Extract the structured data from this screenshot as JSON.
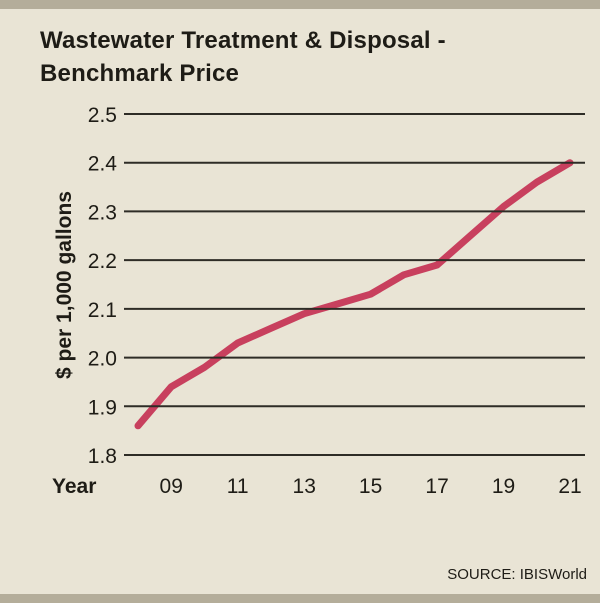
{
  "header": {
    "title_line1": "Wastewater Treatment & Disposal -",
    "title_line2": "Benchmark Price"
  },
  "footer": {
    "source": "SOURCE: IBISWorld"
  },
  "colors": {
    "background": "#e9e4d5",
    "band": "#b4ad9a",
    "line": "#c8405e",
    "grid": "#2e2c26",
    "text": "#1e1c16"
  },
  "chart_data": {
    "type": "line",
    "title": "Wastewater Treatment & Disposal - Benchmark Price",
    "xlabel": "Year",
    "ylabel": "$ per 1,000 gallons",
    "x": [
      "08",
      "09",
      "10",
      "11",
      "12",
      "13",
      "14",
      "15",
      "16",
      "17",
      "18",
      "19",
      "20",
      "21"
    ],
    "values": [
      1.86,
      1.94,
      1.98,
      2.03,
      2.06,
      2.09,
      2.11,
      2.13,
      2.17,
      2.19,
      2.25,
      2.31,
      2.36,
      2.4
    ],
    "x_tick_labels": [
      "09",
      "11",
      "13",
      "15",
      "17",
      "19",
      "21"
    ],
    "y_ticks": [
      1.8,
      1.9,
      2.0,
      2.1,
      2.2,
      2.3,
      2.4,
      2.5
    ],
    "ylim": [
      1.8,
      2.5
    ],
    "grid": "horizontal-only",
    "legend": "none",
    "source": "SOURCE: IBISWorld"
  }
}
